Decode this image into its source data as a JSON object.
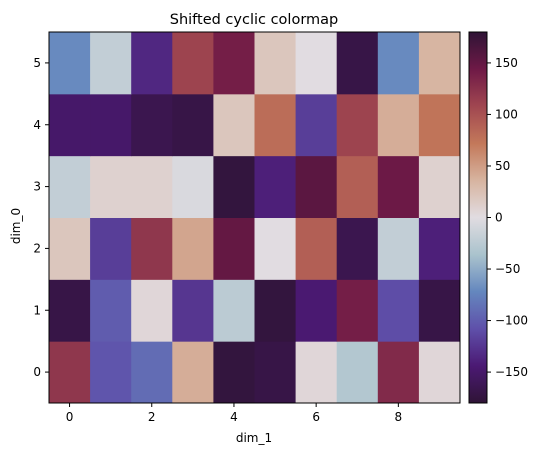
{
  "chart_data": {
    "type": "heatmap",
    "title": "Shifted cyclic colormap",
    "xlabel": "dim_1",
    "ylabel": "dim_0",
    "x_ticks": [
      "0",
      "2",
      "4",
      "6",
      "8"
    ],
    "y_ticks": [
      "0",
      "1",
      "2",
      "3",
      "4",
      "5"
    ],
    "colorbar": {
      "colormap": "twilight_shifted",
      "vmin": -180,
      "vmax": 180,
      "ticks": [
        "−150",
        "−100",
        "−50",
        "0",
        "50",
        "100",
        "150"
      ]
    },
    "values": [
      [
        120,
        -105,
        -90,
        40,
        -175,
        -170,
        5,
        -30,
        130,
        5
      ],
      [
        -170,
        -100,
        5,
        -125,
        -25,
        -175,
        -145,
        140,
        -110,
        -170
      ],
      [
        20,
        -120,
        120,
        45,
        150,
        0,
        90,
        -165,
        -20,
        -140
      ],
      [
        -20,
        10,
        10,
        -5,
        -175,
        -140,
        155,
        90,
        145,
        10
      ],
      [
        -150,
        -150,
        -165,
        -170,
        20,
        80,
        -120,
        110,
        40,
        75
      ],
      [
        -70,
        -20,
        -135,
        110,
        140,
        20,
        0,
        -170,
        -70,
        35
      ]
    ]
  }
}
